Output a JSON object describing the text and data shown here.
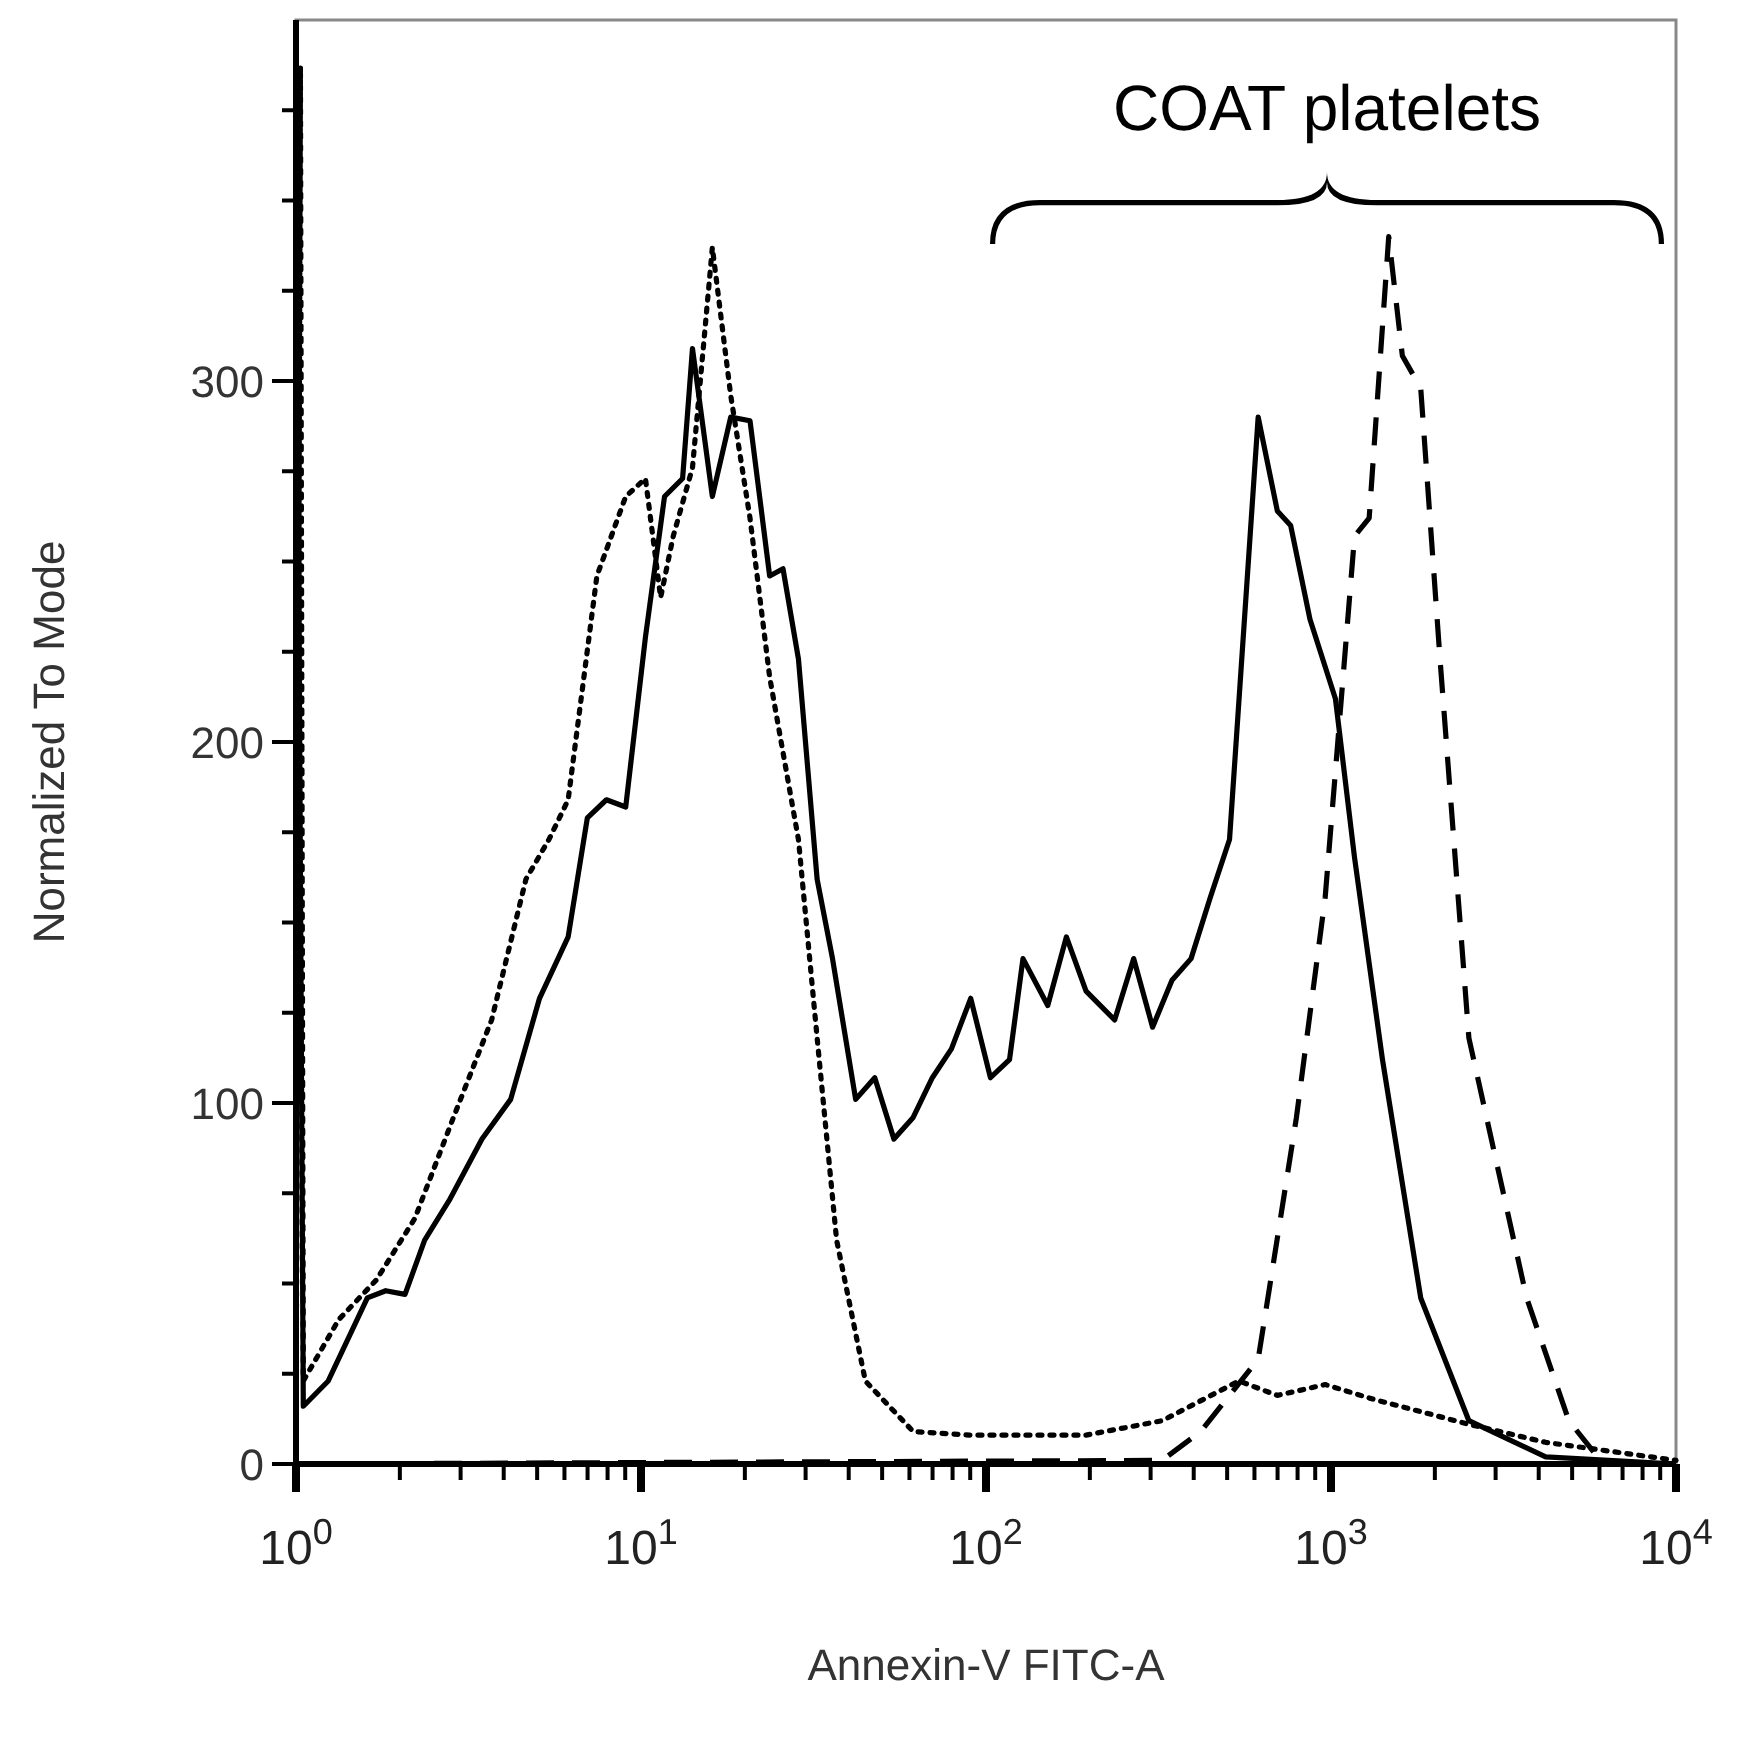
{
  "chart_data": {
    "type": "line",
    "xlabel": "Annexin-V FITC-A",
    "ylabel": "Normalized To Mode",
    "log": "x",
    "xlim": [
      1,
      10000
    ],
    "ylim": [
      0,
      400
    ],
    "xticks": [
      {
        "value": 1,
        "label": "10$^{0}$"
      },
      {
        "value": 2,
        "label": null
      },
      {
        "value": 3,
        "label": null
      },
      {
        "value": 4,
        "label": null
      },
      {
        "value": 5,
        "label": null
      },
      {
        "value": 6,
        "label": null
      },
      {
        "value": 7,
        "label": null
      },
      {
        "value": 8,
        "label": null
      },
      {
        "value": 9,
        "label": null
      },
      {
        "value": 10,
        "label": "10$^{1}$"
      },
      {
        "value": 20,
        "label": null
      },
      {
        "value": 30,
        "label": null
      },
      {
        "value": 40,
        "label": null
      },
      {
        "value": 50,
        "label": null
      },
      {
        "value": 60,
        "label": null
      },
      {
        "value": 70,
        "label": null
      },
      {
        "value": 80,
        "label": null
      },
      {
        "value": 90,
        "label": null
      },
      {
        "value": 100,
        "label": "10$^{2}$"
      },
      {
        "value": 200,
        "label": null
      },
      {
        "value": 300,
        "label": null
      },
      {
        "value": 400,
        "label": null
      },
      {
        "value": 500,
        "label": null
      },
      {
        "value": 600,
        "label": null
      },
      {
        "value": 700,
        "label": null
      },
      {
        "value": 800,
        "label": null
      },
      {
        "value": 900,
        "label": null
      },
      {
        "value": 1000,
        "label": "10$^{3}$"
      },
      {
        "value": 2000,
        "label": null
      },
      {
        "value": 3000,
        "label": null
      },
      {
        "value": 4000,
        "label": null
      },
      {
        "value": 5000,
        "label": null
      },
      {
        "value": 6000,
        "label": null
      },
      {
        "value": 7000,
        "label": null
      },
      {
        "value": 8000,
        "label": null
      },
      {
        "value": 9000,
        "label": null
      },
      {
        "value": 10000,
        "label": "10$^{4}$"
      }
    ],
    "yticks": [
      0,
      {
        "value": 25,
        "label": null
      },
      {
        "value": 50,
        "label": null
      },
      {
        "value": 75,
        "label": null
      },
      100,
      {
        "value": 125,
        "label": null
      },
      {
        "value": 150,
        "label": null
      },
      {
        "value": 175,
        "label": null
      },
      200,
      {
        "value": 225,
        "label": null
      },
      {
        "value": 250,
        "label": null
      },
      {
        "value": 275,
        "label": null
      },
      300,
      {
        "value": 325,
        "label": null
      },
      {
        "value": 350,
        "label": null
      },
      {
        "value": 375,
        "label": null
      }
    ],
    "grid": false,
    "marker": "none",
    "annotations": [
      "COAT platelets"
    ],
    "series": [
      {
        "color": "#000000",
        "line_style": "solid",
        "x": [
          1,
          1,
          1.05,
          1.24,
          1.61,
          1.82,
          2.07,
          2.36,
          2.78,
          3.46,
          4.19,
          5.08,
          6.15,
          6.99,
          7.94,
          9.03,
          10.3,
          11.7,
          13.2,
          14.1,
          16.1,
          18.2,
          20.7,
          23.6,
          25.8,
          28.6,
          32.4,
          35.9,
          41.9,
          47.6,
          54.1,
          61.5,
          69.9,
          79.4,
          90.3,
          103,
          117,
          128,
          151,
          171,
          195,
          236,
          268,
          304,
          346,
          393,
          447,
          508,
          615,
          699,
          764,
          869,
          1030,
          1170,
          1410,
          1820,
          2510,
          4190,
          10000
        ],
        "values": [
          0,
          387,
          16,
          23,
          46,
          48,
          47,
          62,
          73,
          90,
          101,
          129,
          146,
          179,
          184,
          182,
          229,
          268,
          273,
          309,
          268,
          290,
          289,
          246,
          248,
          223,
          162,
          140,
          101,
          107,
          90,
          96,
          107,
          115,
          129,
          107,
          112,
          140,
          127,
          146,
          131,
          123,
          140,
          121,
          134,
          140,
          157,
          173,
          290,
          264,
          260,
          234,
          212,
          168,
          112,
          46,
          12,
          2,
          0
        ]
      },
      {
        "color": "#000000",
        "line_style": "dotted",
        "x": [
          1,
          1.03,
          1.05,
          1.33,
          1.71,
          2.21,
          2.86,
          3.69,
          4.64,
          5.41,
          6.15,
          7.45,
          9.03,
          10.3,
          11.4,
          12.4,
          14.1,
          16.1,
          18.2,
          20.7,
          23.6,
          28.6,
          32.4,
          36.9,
          44.7,
          61.5,
          90.3,
          195,
          324,
          541,
          699,
          962,
          1320,
          2510,
          4190,
          10000
        ],
        "values": [
          0,
          387,
          23,
          40,
          51,
          68,
          96,
          123,
          162,
          173,
          184,
          246,
          268,
          273,
          240,
          257,
          276,
          337,
          296,
          262,
          218,
          173,
          118,
          62,
          23,
          9,
          8,
          8,
          12,
          23,
          19,
          22,
          18,
          11,
          6,
          1
        ]
      },
      {
        "color": "#000000",
        "line_style": "dashed",
        "x": [
          1,
          324,
          419,
          615,
          794,
          962,
          1170,
          1290,
          1470,
          1610,
          1820,
          2070,
          2510,
          3690,
          4890,
          6150
        ],
        "values": [
          0,
          1,
          9,
          29,
          96,
          157,
          257,
          262,
          340,
          307,
          298,
          223,
          118,
          46,
          12,
          0
        ]
      }
    ]
  }
}
